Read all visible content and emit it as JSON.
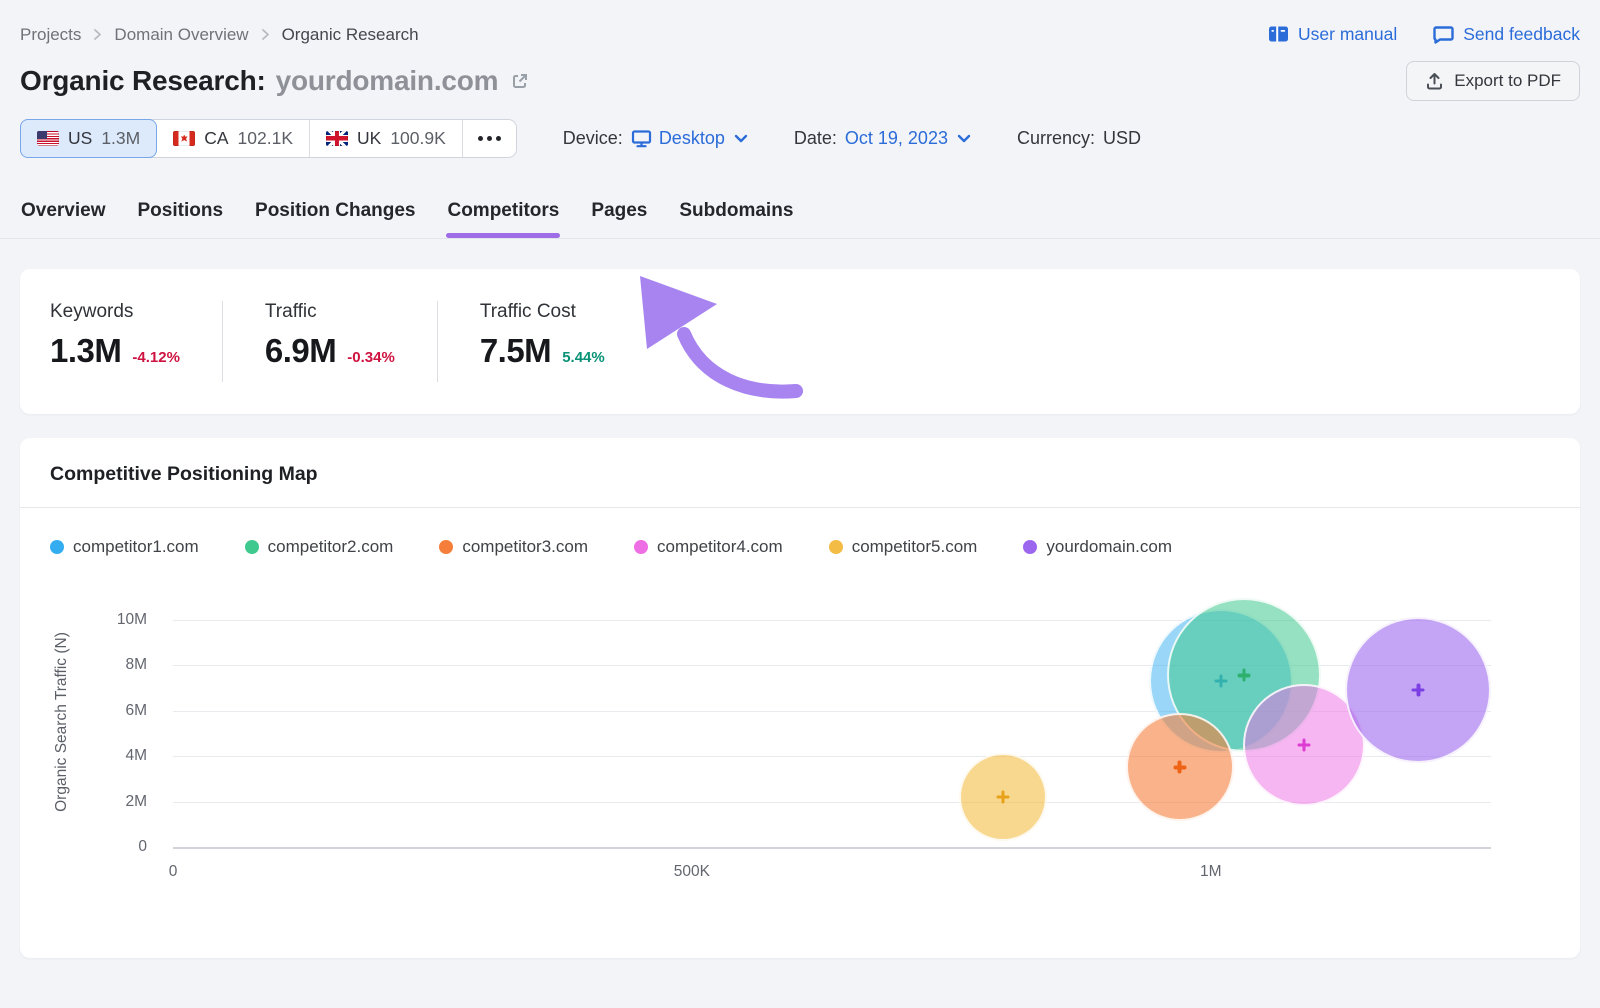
{
  "breadcrumb": {
    "items": [
      "Projects",
      "Domain Overview",
      "Organic Research"
    ]
  },
  "header": {
    "links": [
      {
        "label": "User manual"
      },
      {
        "label": "Send feedback"
      }
    ],
    "title_prefix": "Organic Research:",
    "domain": "yourdomain.com",
    "export_button": "Export to PDF"
  },
  "filters": {
    "countries": [
      {
        "code": "US",
        "value": "1.3M",
        "selected": true
      },
      {
        "code": "CA",
        "value": "102.1K",
        "selected": false
      },
      {
        "code": "UK",
        "value": "100.9K",
        "selected": false
      }
    ],
    "device_label": "Device:",
    "device_value": "Desktop",
    "date_label": "Date:",
    "date_value": "Oct 19, 2023",
    "currency_label": "Currency:",
    "currency_value": "USD"
  },
  "tabs": {
    "items": [
      "Overview",
      "Positions",
      "Position Changes",
      "Competitors",
      "Pages",
      "Subdomains"
    ],
    "active": "Competitors"
  },
  "metrics": [
    {
      "label": "Keywords",
      "value": "1.3M",
      "change": "-4.12%",
      "direction": "down"
    },
    {
      "label": "Traffic",
      "value": "6.9M",
      "change": "-0.34%",
      "direction": "down"
    },
    {
      "label": "Traffic Cost",
      "value": "7.5M",
      "change": "5.44%",
      "direction": "up"
    }
  ],
  "chart_data": {
    "type": "bubble",
    "title": "Competitive Positioning Map",
    "xlabel": "",
    "ylabel": "Organic Search Traffic (N)",
    "xlim": [
      0,
      1270000
    ],
    "ylim": [
      0,
      11000000
    ],
    "grid": true,
    "legend_position": "top",
    "x_ticks": [
      {
        "value": 0,
        "label": "0"
      },
      {
        "value": 500000,
        "label": "500K"
      },
      {
        "value": 1000000,
        "label": "1M"
      }
    ],
    "y_ticks": [
      {
        "value": 0,
        "label": "0"
      },
      {
        "value": 2000000,
        "label": "2M"
      },
      {
        "value": 4000000,
        "label": "4M"
      },
      {
        "value": 6000000,
        "label": "6M"
      },
      {
        "value": 8000000,
        "label": "8M"
      },
      {
        "value": 10000000,
        "label": "10M"
      }
    ],
    "series": [
      {
        "name": "competitor1.com",
        "color": "#33ADF0",
        "marker_color": "#2495D6",
        "fill_opacity": 0.5,
        "x": 1010000,
        "y": 7300000,
        "bubble_radius_px": 72
      },
      {
        "name": "competitor2.com",
        "color": "#3FC98E",
        "marker_color": "#2EB06F",
        "fill_opacity": 0.55,
        "x": 1032000,
        "y": 7550000,
        "bubble_radius_px": 77
      },
      {
        "name": "competitor3.com",
        "color": "#F57E3B",
        "marker_color": "#EE6414",
        "fill_opacity": 0.6,
        "x": 970000,
        "y": 3500000,
        "bubble_radius_px": 54
      },
      {
        "name": "competitor4.com",
        "color": "#EE6EE4",
        "marker_color": "#DC3BD4",
        "fill_opacity": 0.5,
        "x": 1090000,
        "y": 4500000,
        "bubble_radius_px": 61
      },
      {
        "name": "competitor5.com",
        "color": "#F3BC45",
        "marker_color": "#E8A219",
        "fill_opacity": 0.6,
        "x": 800000,
        "y": 2200000,
        "bubble_radius_px": 44
      },
      {
        "name": "yourdomain.com",
        "color": "#9C67EF",
        "marker_color": "#7B3FE4",
        "fill_opacity": 0.6,
        "x": 1200000,
        "y": 6900000,
        "bubble_radius_px": 73
      }
    ]
  },
  "annotation_arrow": {
    "points_at": "Competitors tab",
    "color": "#A784F0"
  },
  "theme": {
    "page_bg": "#f3f4f8",
    "card_bg": "#ffffff",
    "link_blue": "#2b6cd9",
    "active_tab_underline": "#9d6ce6",
    "negative_red": "#cf1340",
    "positive_green": "#0a9276",
    "selected_country_bg": "#ddeafc",
    "selected_country_border": "#77a7e8"
  },
  "icons": [
    "book-icon",
    "chat-bubble-icon",
    "export-icon",
    "external-link-icon",
    "monitor-icon",
    "chevron-down-icon",
    "ellipsis-icon",
    "us-flag-icon",
    "ca-flag-icon",
    "uk-flag-icon",
    "plus-marker-icon",
    "breadcrumb-chevron-icon"
  ]
}
